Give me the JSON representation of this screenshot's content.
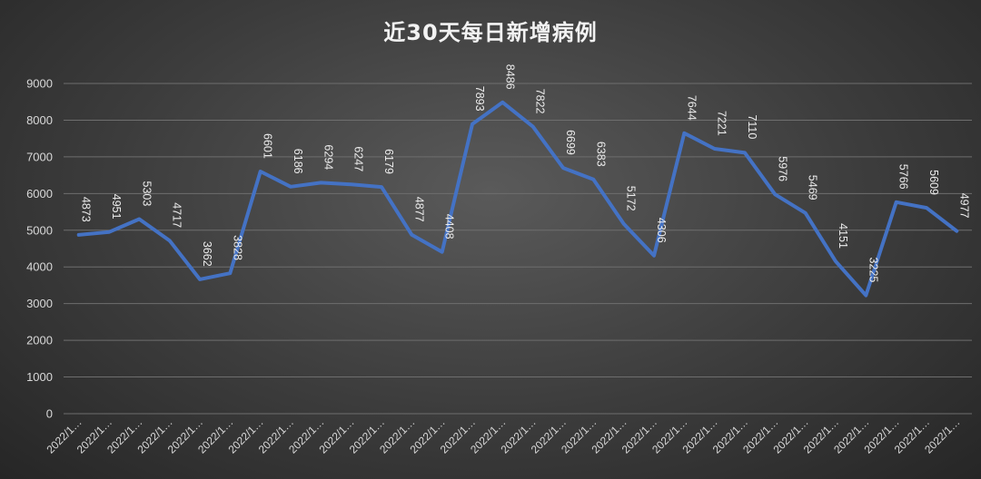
{
  "chart_data": {
    "type": "line",
    "title": "近30天每日新增病例",
    "xlabel": "",
    "ylabel": "",
    "ylim": [
      0,
      9000
    ],
    "yticks": [
      0,
      1000,
      2000,
      3000,
      4000,
      5000,
      6000,
      7000,
      8000,
      9000
    ],
    "grid": true,
    "categories": [
      "2022/1…",
      "2022/1…",
      "2022/1…",
      "2022/1…",
      "2022/1…",
      "2022/1…",
      "2022/1…",
      "2022/1…",
      "2022/1…",
      "2022/1…",
      "2022/1…",
      "2022/1…",
      "2022/1…",
      "2022/1…",
      "2022/1…",
      "2022/1…",
      "2022/1…",
      "2022/1…",
      "2022/1…",
      "2022/1…",
      "2022/1…",
      "2022/1…",
      "2022/1…",
      "2022/1…",
      "2022/1…",
      "2022/1…",
      "2022/1…",
      "2022/1…",
      "2022/1…",
      "2022/1…"
    ],
    "values": [
      4873,
      4951,
      5303,
      4717,
      3662,
      3828,
      6601,
      6186,
      6294,
      6247,
      6179,
      4877,
      4408,
      7893,
      8486,
      7822,
      6699,
      6383,
      5172,
      4306,
      7644,
      7221,
      7110,
      5976,
      5469,
      4151,
      3225,
      5766,
      5609,
      4977
    ],
    "series_color": "#4472c4"
  }
}
